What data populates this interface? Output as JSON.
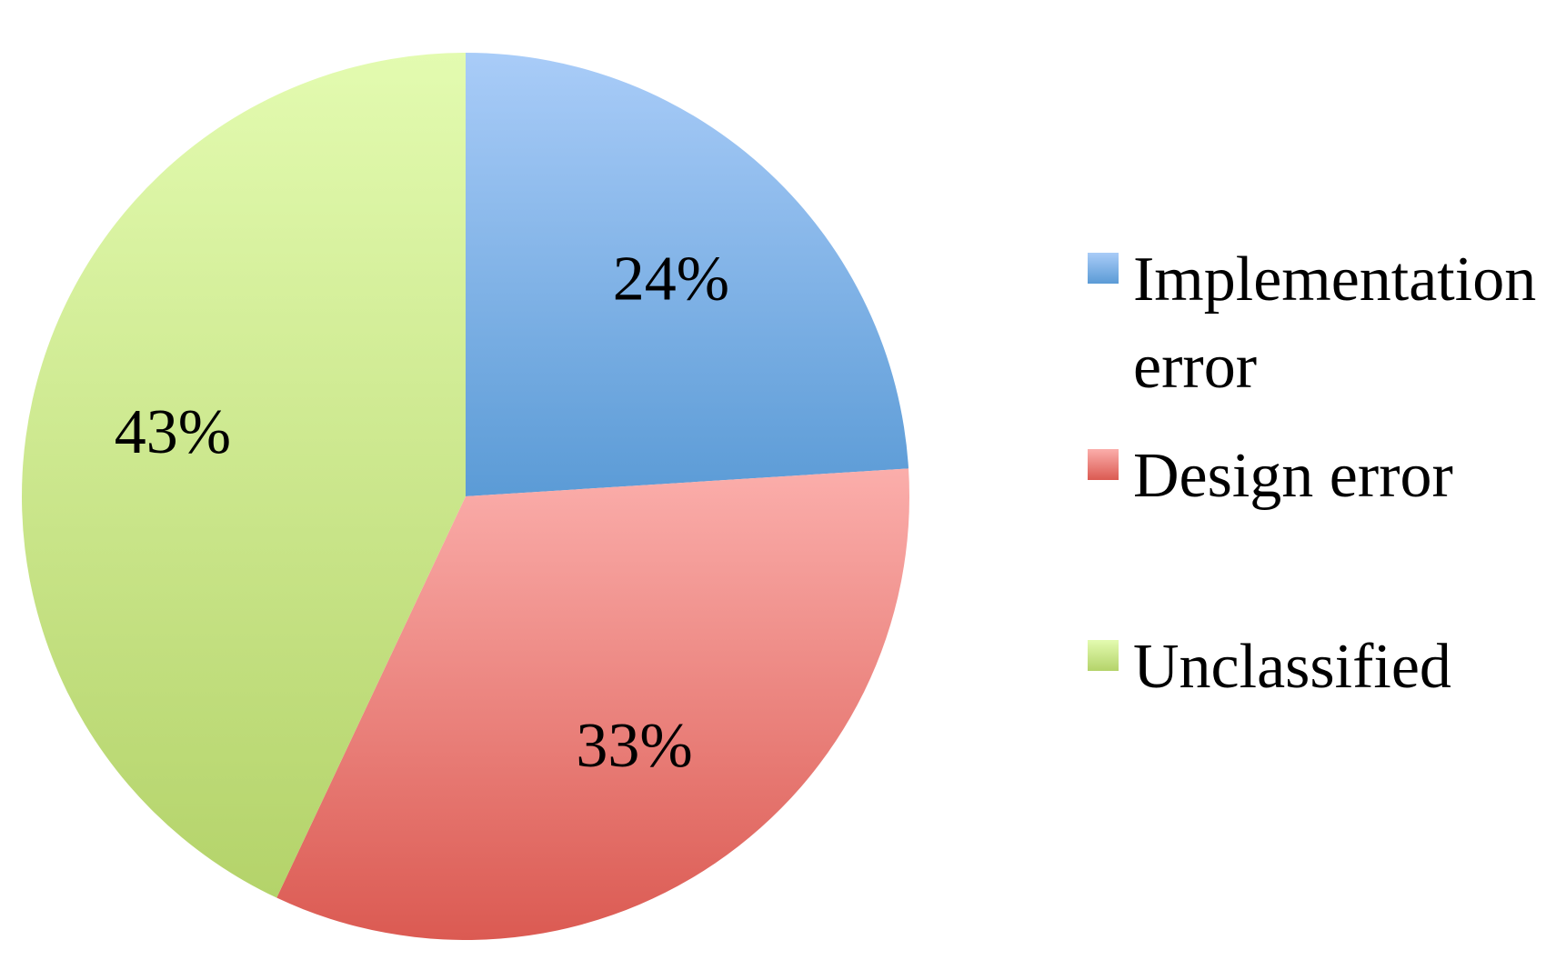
{
  "chart_data": {
    "type": "pie",
    "start_angle_deg": 0,
    "direction": "clockwise",
    "slices": [
      {
        "label": "Implementation error",
        "value": 24,
        "display": "24%",
        "color_light": "#a9ccf8",
        "color_dark": "#5b9bd6"
      },
      {
        "label": "Design error",
        "value": 33,
        "display": "33%",
        "color_light": "#fbaeab",
        "color_dark": "#db5a52"
      },
      {
        "label": "Unclassified",
        "value": 43,
        "display": "43%",
        "color_light": "#e3fbb0",
        "color_dark": "#b4d36a"
      }
    ],
    "legend_position": "right"
  }
}
